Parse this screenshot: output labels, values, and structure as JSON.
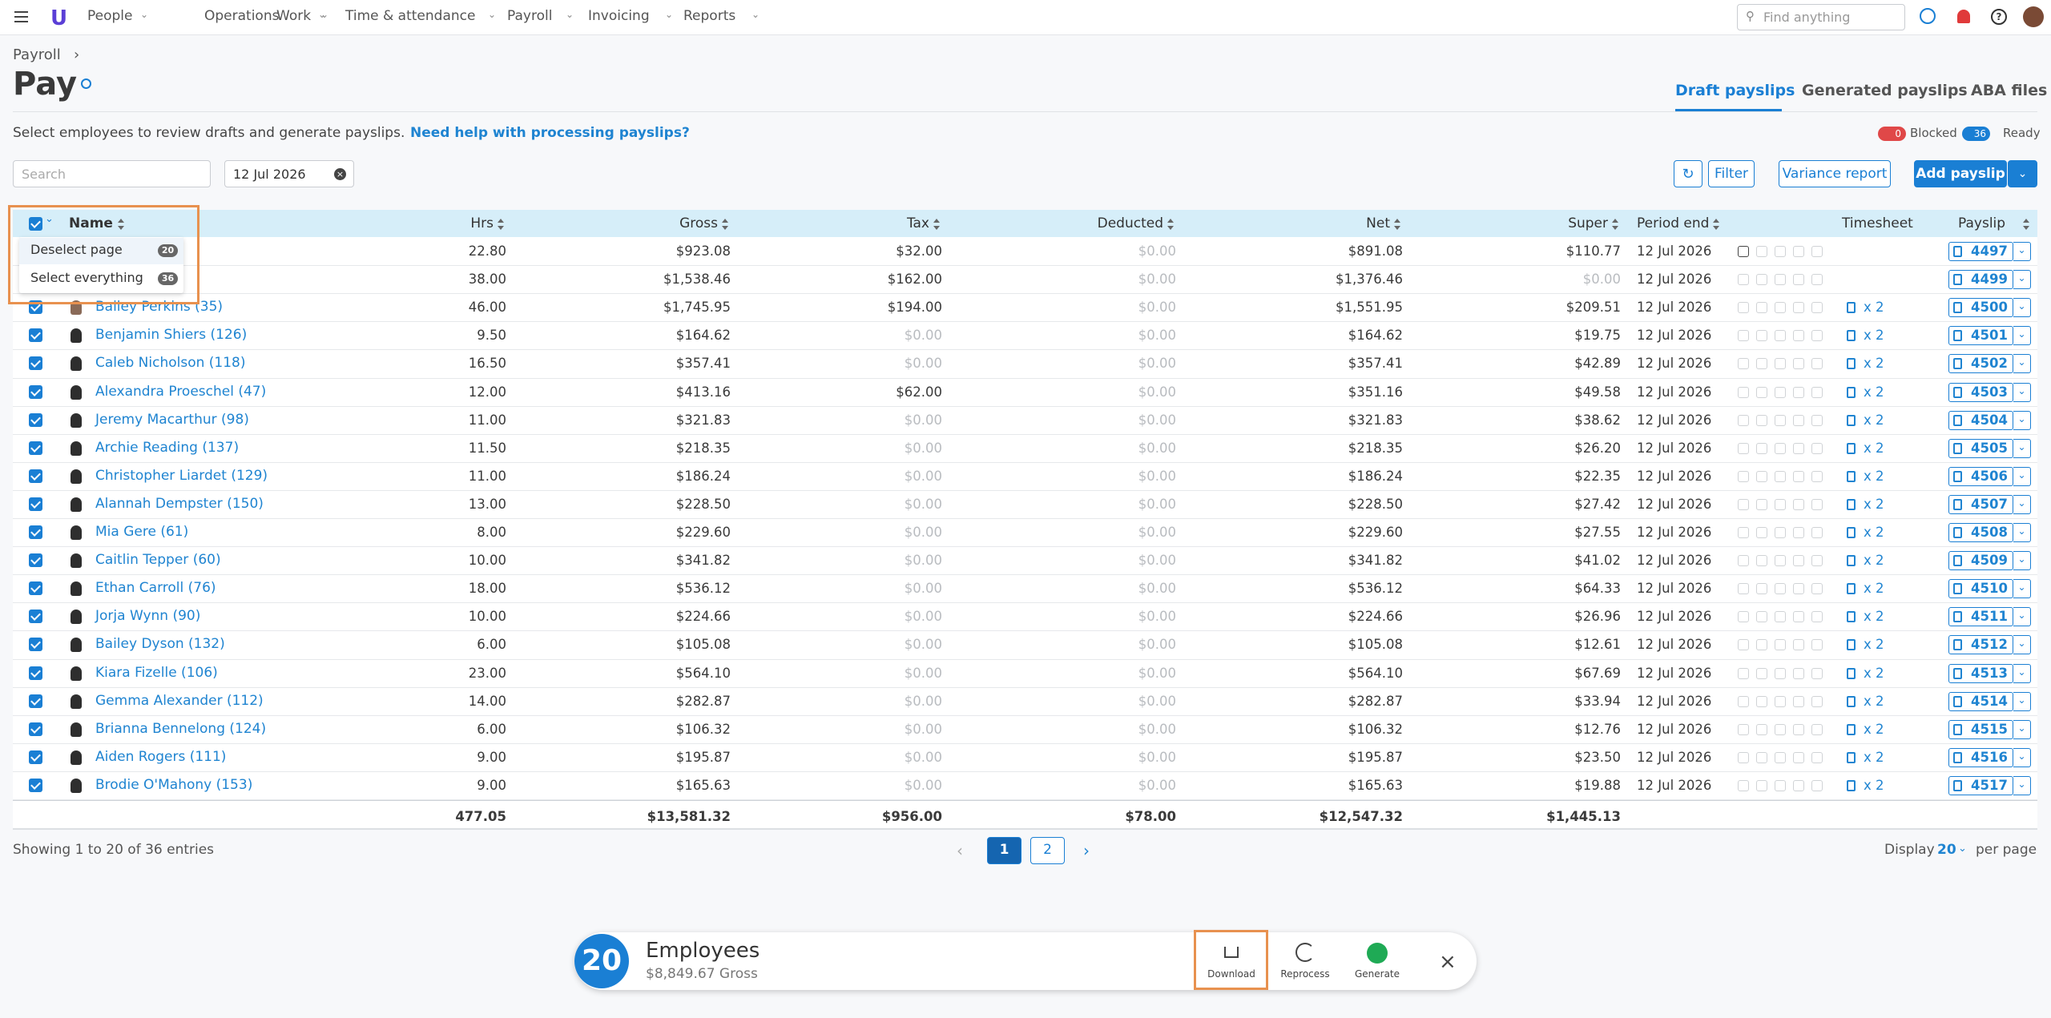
{
  "nav": {
    "items": [
      "People",
      "Operations",
      "Work",
      "Time & attendance",
      "Payroll",
      "Invoicing",
      "Reports"
    ],
    "search_placeholder": "Find anything"
  },
  "header": {
    "breadcrumb": "Payroll",
    "title": "Pay",
    "tabs": [
      "Draft payslips",
      "Generated payslips",
      "ABA files"
    ],
    "description": "Select employees to review drafts and generate payslips.",
    "help_link": "Need help with processing payslips?",
    "status": {
      "blocked_count": "0",
      "blocked_label": "Blocked",
      "ready_count": "36",
      "ready_label": "Ready"
    }
  },
  "toolbar": {
    "search_placeholder": "Search",
    "date": "12 Jul 2026",
    "buttons": [
      "Filter",
      "Variance report",
      "Add payslip"
    ]
  },
  "selection_menu": {
    "items": [
      {
        "label": "Deselect page",
        "count": "20"
      },
      {
        "label": "Select everything",
        "count": "36"
      }
    ]
  },
  "table": {
    "columns": [
      "Name",
      "Hrs",
      "Gross",
      "Tax",
      "Deducted",
      "Net",
      "Super",
      "Period end",
      "Timesheet",
      "Payslip"
    ],
    "rows": [
      [
        null,
        "22.80",
        "$923.08",
        "$32.00",
        "$0.00",
        "$891.08",
        "$110.77",
        "12 Jul 2026",
        null,
        "4497"
      ],
      [
        null,
        "38.00",
        "$1,538.46",
        "$162.00",
        "$0.00",
        "$1,376.46",
        "$0.00",
        "12 Jul 2026",
        null,
        "4499"
      ],
      [
        "Bailey Perkins (35)",
        "46.00",
        "$1,745.95",
        "$194.00",
        "$0.00",
        "$1,551.95",
        "$209.51",
        "12 Jul 2026",
        "x 2",
        "4500"
      ],
      [
        "Benjamin Shiers (126)",
        "9.50",
        "$164.62",
        "$0.00",
        "$0.00",
        "$164.62",
        "$19.75",
        "12 Jul 2026",
        "x 2",
        "4501"
      ],
      [
        "Caleb Nicholson (118)",
        "16.50",
        "$357.41",
        "$0.00",
        "$0.00",
        "$357.41",
        "$42.89",
        "12 Jul 2026",
        "x 2",
        "4502"
      ],
      [
        "Alexandra Proeschel (47)",
        "12.00",
        "$413.16",
        "$62.00",
        "$0.00",
        "$351.16",
        "$49.58",
        "12 Jul 2026",
        "x 2",
        "4503"
      ],
      [
        "Jeremy Macarthur (98)",
        "11.00",
        "$321.83",
        "$0.00",
        "$0.00",
        "$321.83",
        "$38.62",
        "12 Jul 2026",
        "x 2",
        "4504"
      ],
      [
        "Archie Reading (137)",
        "11.50",
        "$218.35",
        "$0.00",
        "$0.00",
        "$218.35",
        "$26.20",
        "12 Jul 2026",
        "x 2",
        "4505"
      ],
      [
        "Christopher Liardet (129)",
        "11.00",
        "$186.24",
        "$0.00",
        "$0.00",
        "$186.24",
        "$22.35",
        "12 Jul 2026",
        "x 2",
        "4506"
      ],
      [
        "Alannah Dempster (150)",
        "13.00",
        "$228.50",
        "$0.00",
        "$0.00",
        "$228.50",
        "$27.42",
        "12 Jul 2026",
        "x 2",
        "4507"
      ],
      [
        "Mia Gere (61)",
        "8.00",
        "$229.60",
        "$0.00",
        "$0.00",
        "$229.60",
        "$27.55",
        "12 Jul 2026",
        "x 2",
        "4508"
      ],
      [
        "Caitlin Tepper (60)",
        "10.00",
        "$341.82",
        "$0.00",
        "$0.00",
        "$341.82",
        "$41.02",
        "12 Jul 2026",
        "x 2",
        "4509"
      ],
      [
        "Ethan Carroll (76)",
        "18.00",
        "$536.12",
        "$0.00",
        "$0.00",
        "$536.12",
        "$64.33",
        "12 Jul 2026",
        "x 2",
        "4510"
      ],
      [
        "Jorja Wynn (90)",
        "10.00",
        "$224.66",
        "$0.00",
        "$0.00",
        "$224.66",
        "$26.96",
        "12 Jul 2026",
        "x 2",
        "4511"
      ],
      [
        "Bailey Dyson (132)",
        "6.00",
        "$105.08",
        "$0.00",
        "$0.00",
        "$105.08",
        "$12.61",
        "12 Jul 2026",
        "x 2",
        "4512"
      ],
      [
        "Kiara Fizelle (106)",
        "23.00",
        "$564.10",
        "$0.00",
        "$0.00",
        "$564.10",
        "$67.69",
        "12 Jul 2026",
        "x 2",
        "4513"
      ],
      [
        "Gemma Alexander (112)",
        "14.00",
        "$282.87",
        "$0.00",
        "$0.00",
        "$282.87",
        "$33.94",
        "12 Jul 2026",
        "x 2",
        "4514"
      ],
      [
        "Brianna Bennelong (124)",
        "6.00",
        "$106.32",
        "$0.00",
        "$0.00",
        "$106.32",
        "$12.76",
        "12 Jul 2026",
        "x 2",
        "4515"
      ],
      [
        "Aiden Rogers (111)",
        "9.00",
        "$195.87",
        "$0.00",
        "$0.00",
        "$195.87",
        "$23.50",
        "12 Jul 2026",
        "x 2",
        "4516"
      ],
      [
        "Brodie O'Mahony (153)",
        "9.00",
        "$165.63",
        "$0.00",
        "$0.00",
        "$165.63",
        "$19.88",
        "12 Jul 2026",
        "x 2",
        "4517"
      ]
    ],
    "totals": [
      "477.05",
      "$13,581.32",
      "$956.00",
      "$78.00",
      "$12,547.32",
      "$1,445.13"
    ]
  },
  "footer": {
    "showing": "Showing 1 to 20 of 36 entries",
    "pages": [
      "1",
      "2"
    ],
    "display_label": "Display",
    "per_page_value": "20",
    "per_page_label": "per page"
  },
  "selection_bar": {
    "count": "20",
    "label": "Employees",
    "gross": "$8,849.67 Gross",
    "actions": [
      "Download",
      "Reprocess",
      "Generate"
    ]
  }
}
